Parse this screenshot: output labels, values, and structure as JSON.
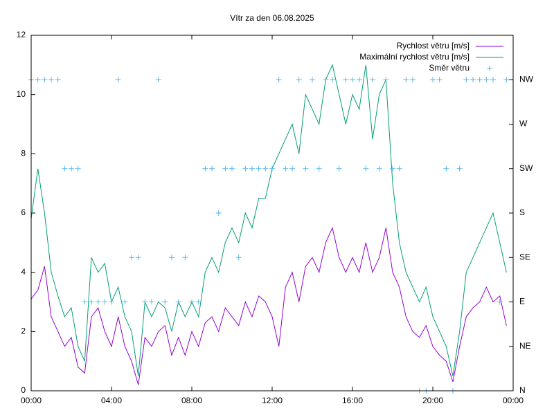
{
  "chart_data": {
    "type": "line",
    "title": "Vítr za den 06.08.2025",
    "x": [
      0,
      20,
      40,
      60,
      80,
      100,
      120,
      140,
      160,
      180,
      200,
      220,
      240,
      260,
      280,
      300,
      320,
      340,
      360,
      380,
      400,
      420,
      440,
      460,
      480,
      500,
      520,
      540,
      560,
      580,
      600,
      620,
      640,
      660,
      680,
      700,
      720,
      740,
      760,
      780,
      800,
      820,
      840,
      860,
      880,
      900,
      920,
      940,
      960,
      980,
      1000,
      1020,
      1040,
      1060,
      1080,
      1100,
      1120,
      1140,
      1160,
      1180,
      1200,
      1220,
      1240,
      1260,
      1280,
      1300,
      1320,
      1340,
      1360,
      1380,
      1400,
      1420
    ],
    "xlim": [
      0,
      1440
    ],
    "xticks": [
      {
        "value": 0,
        "label": "00:00"
      },
      {
        "value": 240,
        "label": "04:00"
      },
      {
        "value": 480,
        "label": "08:00"
      },
      {
        "value": 720,
        "label": "12:00"
      },
      {
        "value": 960,
        "label": "16:00"
      },
      {
        "value": 1200,
        "label": "20:00"
      },
      {
        "value": 1440,
        "label": "00:00"
      }
    ],
    "ylim": [
      0,
      12
    ],
    "yticks": [
      0,
      2,
      4,
      6,
      8,
      10,
      12
    ],
    "y2lim": [
      0,
      8
    ],
    "y2ticks": [
      {
        "value": 0,
        "label": "N"
      },
      {
        "value": 1,
        "label": "NE"
      },
      {
        "value": 2,
        "label": "E"
      },
      {
        "value": 3,
        "label": "SE"
      },
      {
        "value": 4,
        "label": "S"
      },
      {
        "value": 5,
        "label": "SW"
      },
      {
        "value": 6,
        "label": "W"
      },
      {
        "value": 7,
        "label": "NW"
      }
    ],
    "legend": "top-right",
    "series": [
      {
        "name": "Rychlost větru [m/s]",
        "color": "#9400d3",
        "style": "line",
        "values": [
          3.1,
          3.4,
          4.2,
          2.5,
          2.0,
          1.5,
          1.8,
          0.8,
          0.6,
          2.5,
          2.8,
          2.0,
          1.5,
          2.5,
          1.5,
          1.0,
          0.2,
          1.8,
          1.5,
          2.0,
          2.2,
          1.2,
          1.8,
          1.2,
          2.0,
          1.5,
          2.3,
          2.5,
          2.0,
          2.8,
          2.5,
          2.2,
          3.0,
          2.5,
          3.2,
          3.0,
          2.5,
          1.5,
          3.5,
          4.0,
          3.0,
          4.2,
          4.5,
          4.0,
          5.0,
          5.5,
          4.5,
          4.0,
          4.5,
          4.0,
          5.0,
          4.0,
          4.5,
          5.5,
          4.0,
          3.5,
          2.5,
          2.0,
          1.8,
          2.2,
          1.5,
          1.2,
          1.0,
          0.3,
          1.5,
          2.5,
          2.8,
          3.0,
          3.5,
          3.0,
          3.2,
          2.2
        ]
      },
      {
        "name": "Maximální rychlost větru [m/s]",
        "color": "#009e73",
        "style": "line",
        "values": [
          5.8,
          7.5,
          6.0,
          4.0,
          3.2,
          2.5,
          2.8,
          1.5,
          1.0,
          4.5,
          4.0,
          4.3,
          3.0,
          3.5,
          2.5,
          2.0,
          0.5,
          3.0,
          2.5,
          3.0,
          2.8,
          2.0,
          3.0,
          2.5,
          3.0,
          2.5,
          4.0,
          4.5,
          4.0,
          5.0,
          5.5,
          5.0,
          6.0,
          5.5,
          6.5,
          6.5,
          7.5,
          8.0,
          8.5,
          9.0,
          8.0,
          10.0,
          9.5,
          9.0,
          10.5,
          11.0,
          10.0,
          9.0,
          10.0,
          9.5,
          11.0,
          8.5,
          10.0,
          10.5,
          7.0,
          5.0,
          4.0,
          3.5,
          3.0,
          3.5,
          2.5,
          2.0,
          1.5,
          0.5,
          2.0,
          4.0,
          4.5,
          5.0,
          5.5,
          6.0,
          5.0,
          4.0
        ]
      },
      {
        "name": "Směr větru",
        "color": "#56b4e9",
        "style": "points",
        "axis": "y2",
        "values": [
          7,
          7,
          7,
          7,
          7,
          5,
          5,
          5,
          2,
          2,
          2,
          2,
          2,
          7,
          2,
          3,
          3,
          2,
          2,
          7,
          2,
          3,
          2,
          3,
          2,
          2,
          5,
          5,
          4,
          5,
          5,
          3,
          5,
          5,
          5,
          5,
          5,
          7,
          5,
          5,
          7,
          5,
          7,
          5,
          7,
          7,
          5,
          7,
          7,
          7,
          5,
          7,
          5,
          7,
          5,
          5,
          7,
          7,
          0,
          0,
          7,
          7,
          5,
          0,
          5,
          7,
          7,
          7,
          7,
          7,
          2,
          7
        ]
      }
    ]
  }
}
